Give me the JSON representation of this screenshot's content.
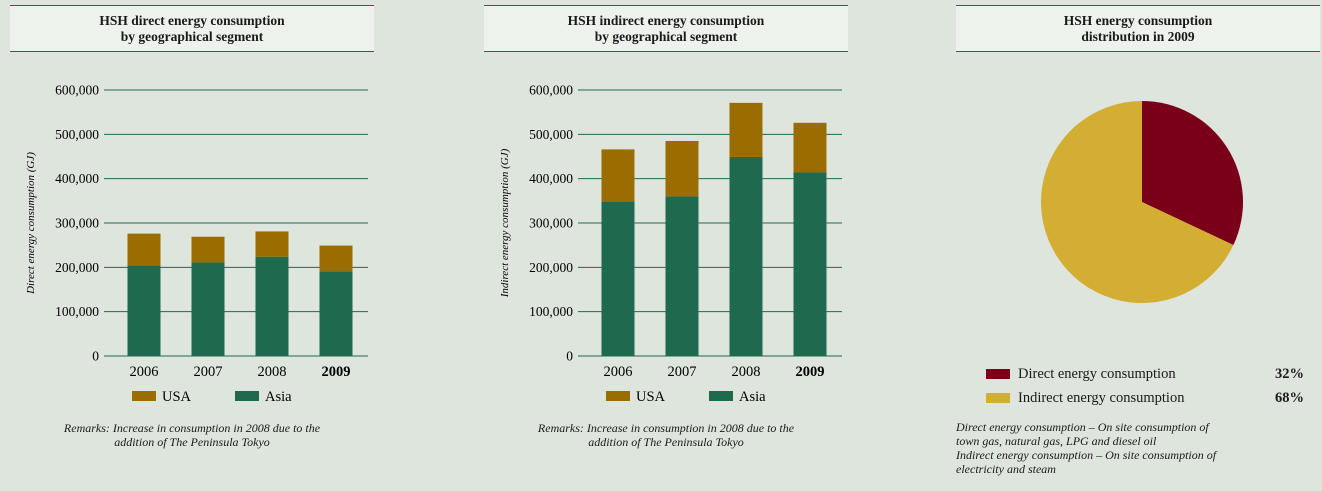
{
  "colors": {
    "asia": "#1f6a4f",
    "usa": "#9a6d00",
    "direct": "#7a0019",
    "indirect": "#d4ad33",
    "axis": "#1f6a4f"
  },
  "panel1": {
    "title_line1": "HSH direct energy consumption",
    "title_line2": "by geographical segment",
    "remark_line1": "Remarks: Increase in consumption in 2008 due to the",
    "remark_line2": "addition of The Peninsula Tokyo"
  },
  "panel2": {
    "title_line1": "HSH indirect energy consumption",
    "title_line2": "by geographical segment",
    "remark_line1": "Remarks: Increase in consumption in 2008 due to the",
    "remark_line2": "addition of The Peninsula Tokyo"
  },
  "panel3": {
    "title_line1": "HSH energy consumption",
    "title_line2": "distribution in 2009",
    "legend": [
      {
        "label": "Direct energy consumption",
        "pct": "32%"
      },
      {
        "label": "Indirect energy consumption",
        "pct": "68%"
      }
    ],
    "note1": "Direct energy consumption – On site consumption of",
    "note2": "town gas, natural gas, LPG and diesel oil",
    "note3": "Indirect energy consumption – On site consumption of",
    "note4": "electricity and steam"
  },
  "chart_data": [
    {
      "type": "bar",
      "stacked": true,
      "categories": [
        "2006",
        "2007",
        "2008",
        "2009"
      ],
      "bold_category": "2009",
      "ylabel": "Direct energy consumption (GJ)",
      "ylim": [
        0,
        600000
      ],
      "yticks": [
        "0",
        "100,000",
        "200,000",
        "300,000",
        "400,000",
        "500,000",
        "600,000"
      ],
      "series": [
        {
          "name": "Asia",
          "values": [
            204000,
            211000,
            224000,
            191000
          ]
        },
        {
          "name": "USA",
          "values": [
            72000,
            58000,
            57000,
            58000
          ]
        }
      ],
      "legend": [
        "USA",
        "Asia"
      ],
      "grid": true
    },
    {
      "type": "bar",
      "stacked": true,
      "categories": [
        "2006",
        "2007",
        "2008",
        "2009"
      ],
      "bold_category": "2009",
      "ylabel": "Indirect energy consumption (GJ)",
      "ylim": [
        0,
        600000
      ],
      "yticks": [
        "0",
        "100,000",
        "200,000",
        "300,000",
        "400,000",
        "500,000",
        "600,000"
      ],
      "series": [
        {
          "name": "Asia",
          "values": [
            349000,
            360000,
            449000,
            414000
          ]
        },
        {
          "name": "USA",
          "values": [
            117000,
            125000,
            122000,
            112000
          ]
        }
      ],
      "legend": [
        "USA",
        "Asia"
      ],
      "grid": true
    },
    {
      "type": "pie",
      "categories": [
        "Direct energy consumption",
        "Indirect energy consumption"
      ],
      "values": [
        32,
        68
      ]
    }
  ]
}
